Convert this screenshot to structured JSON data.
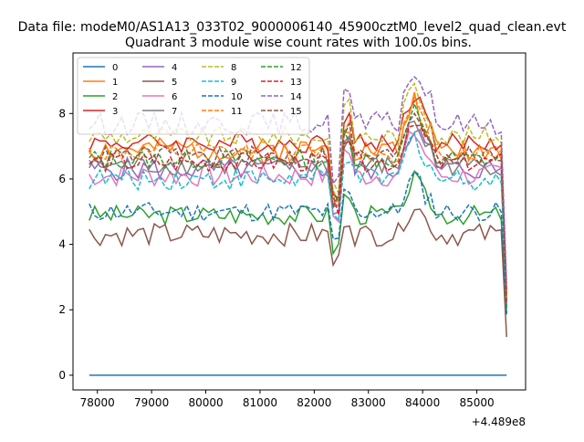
{
  "figure": {
    "suptitle": "Data file: modeM0/AS1A13_033T02_9000006140_45900cztM0_level2_quad_clean.evt"
  },
  "chart_data": {
    "type": "line",
    "title": "Quadrant 3 module wise count rates with 100.0s bins.",
    "xlabel": "",
    "ylabel": "",
    "offset_label": "+4.489e8",
    "xlim": [
      77550,
      85900
    ],
    "ylim": [
      -0.45,
      9.85
    ],
    "x_start": 77850,
    "x_end": 85550,
    "bin_step": 100,
    "xticks": [
      78000,
      79000,
      80000,
      81000,
      82000,
      83000,
      84000,
      85000
    ],
    "xtick_labels": [
      "78000",
      "79000",
      "80000",
      "81000",
      "82000",
      "83000",
      "84000",
      "85000"
    ],
    "yticks": [
      0,
      2,
      4,
      6,
      8
    ],
    "ytick_labels": [
      "0",
      "2",
      "4",
      "6",
      "8"
    ],
    "grid": false,
    "legend": {
      "placement": "top-left",
      "columns": 4
    },
    "series": [
      {
        "name": "0",
        "color": "#1f77b4",
        "dash": "solid",
        "level": 0.0,
        "noise": 0,
        "seed": 1
      },
      {
        "name": "1",
        "color": "#ff7f0e",
        "dash": "solid",
        "level": 6.9,
        "noise": 0.35,
        "seed": 2
      },
      {
        "name": "2",
        "color": "#2ca02c",
        "dash": "solid",
        "level": 4.9,
        "noise": 0.3,
        "seed": 3
      },
      {
        "name": "3",
        "color": "#d62728",
        "dash": "solid",
        "level": 7.1,
        "noise": 0.3,
        "seed": 4
      },
      {
        "name": "4",
        "color": "#9467bd",
        "dash": "solid",
        "level": 6.3,
        "noise": 0.35,
        "seed": 5
      },
      {
        "name": "5",
        "color": "#8c564b",
        "dash": "solid",
        "level": 4.3,
        "noise": 0.35,
        "seed": 6
      },
      {
        "name": "6",
        "color": "#e377c2",
        "dash": "solid",
        "level": 6.1,
        "noise": 0.35,
        "seed": 7
      },
      {
        "name": "7",
        "color": "#7f7f7f",
        "dash": "solid",
        "level": 6.4,
        "noise": 0.3,
        "seed": 8
      },
      {
        "name": "8",
        "color": "#bcbd22",
        "dash": "dashed",
        "level": 7.3,
        "noise": 0.3,
        "seed": 9
      },
      {
        "name": "9",
        "color": "#17becf",
        "dash": "dashed",
        "level": 6.0,
        "noise": 0.35,
        "seed": 10
      },
      {
        "name": "10",
        "color": "#1f77b4",
        "dash": "dashed",
        "level": 5.0,
        "noise": 0.3,
        "seed": 11
      },
      {
        "name": "11",
        "color": "#ff7f0e",
        "dash": "dashed",
        "level": 6.8,
        "noise": 0.3,
        "seed": 12
      },
      {
        "name": "12",
        "color": "#2ca02c",
        "dash": "dashed",
        "level": 6.6,
        "noise": 0.3,
        "seed": 13
      },
      {
        "name": "13",
        "color": "#d62728",
        "dash": "dashed",
        "level": 6.5,
        "noise": 0.3,
        "seed": 14
      },
      {
        "name": "14",
        "color": "#9467bd",
        "dash": "dashed",
        "level": 7.7,
        "noise": 0.35,
        "seed": 15
      },
      {
        "name": "15",
        "color": "#8c564b",
        "dash": "dashed",
        "level": 6.7,
        "noise": 0.3,
        "seed": 16
      }
    ]
  }
}
